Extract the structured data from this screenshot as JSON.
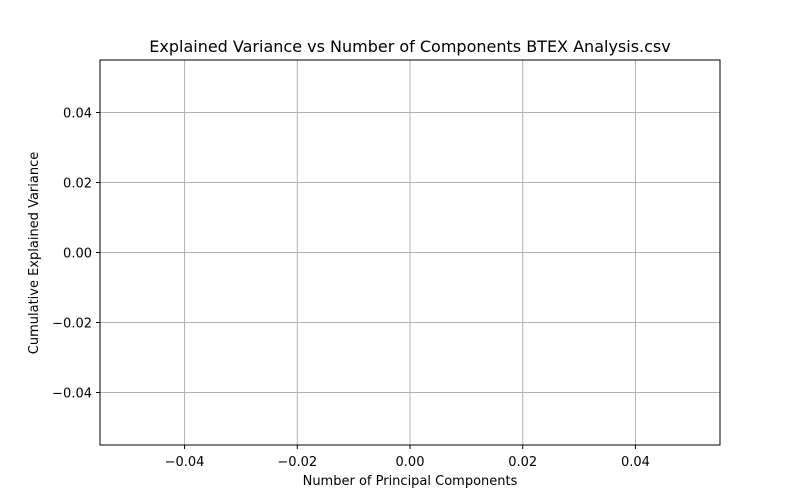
{
  "chart_data": {
    "type": "line",
    "title": "Explained Variance vs Number of Components BTEX Analysis.csv",
    "xlabel": "Number of Principal Components",
    "ylabel": "Cumulative Explained Variance",
    "xlim": [
      -0.055,
      0.055
    ],
    "ylim": [
      -0.055,
      0.055
    ],
    "x_ticks": [
      -0.04,
      -0.02,
      0.0,
      0.02,
      0.04
    ],
    "y_ticks": [
      -0.04,
      -0.02,
      0.0,
      0.02,
      0.04
    ],
    "x_tick_labels": [
      "−0.04",
      "−0.02",
      "0.00",
      "0.02",
      "0.04"
    ],
    "y_tick_labels": [
      "−0.04",
      "−0.02",
      "0.00",
      "0.02",
      "0.04"
    ],
    "grid": true,
    "series": [
      {
        "values": []
      }
    ],
    "colors": {
      "grid": "#b0b0b0",
      "axes": "#000000",
      "background": "#ffffff"
    }
  }
}
